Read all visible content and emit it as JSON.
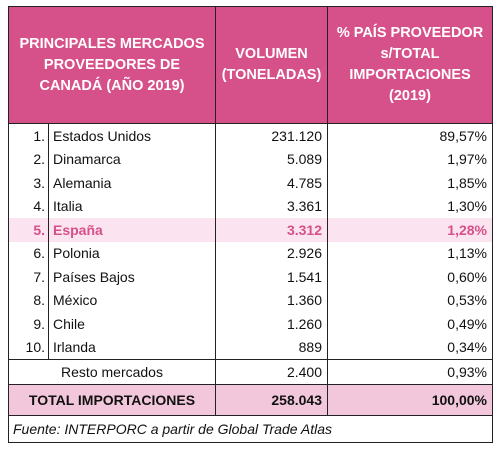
{
  "header": [
    [
      "PRINCIPALES MERCADOS",
      "PROVEEDORES DE",
      "CANADÁ (AÑO 2019)"
    ],
    [
      "VOLUMEN",
      "(TONELADAS)"
    ],
    [
      "% PAÍS PROVEEDOR",
      "s/TOTAL",
      "IMPORTACIONES",
      "(2019)"
    ]
  ],
  "rows": [
    [
      "1.",
      "Estados Unidos",
      "231.120",
      "89,57%"
    ],
    [
      "2.",
      "Dinamarca",
      "5.089",
      "1,97%"
    ],
    [
      "3.",
      "Alemania",
      "4.785",
      "1,85%"
    ],
    [
      "4.",
      "Italia",
      "3.361",
      "1,30%"
    ],
    [
      "5.",
      "España",
      "3.312",
      "1,28%"
    ],
    [
      "6.",
      "Polonia",
      "2.926",
      "1,13%"
    ],
    [
      "7.",
      "Países Bajos",
      "1.541",
      "0,60%"
    ],
    [
      "8.",
      "México",
      "1.360",
      "0,53%"
    ],
    [
      "9.",
      "Chile",
      "1.260",
      "0,49%"
    ],
    [
      "10.",
      "Irlanda",
      "889",
      "0,34%"
    ]
  ],
  "rest": [
    "Resto mercados",
    "2.400",
    "0,93%"
  ],
  "total": [
    "TOTAL IMPORTACIONES",
    "258.043",
    "100,00%"
  ],
  "source": "Fuente: INTERPORC a partir de Global Trade Atlas"
}
